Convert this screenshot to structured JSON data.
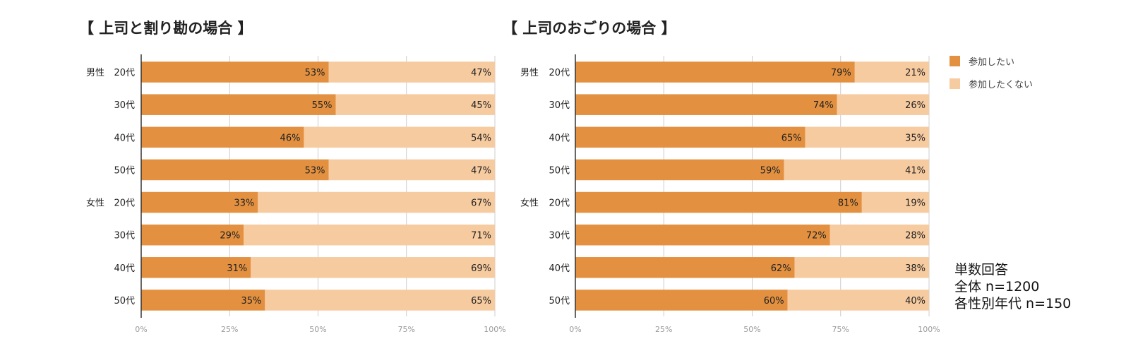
{
  "chart_data": [
    {
      "type": "bar",
      "stacked": true,
      "orientation": "horizontal",
      "title": "【 上司と割り勘の場合 】",
      "group_labels": [
        "男性",
        "",
        "",
        "",
        "女性",
        "",
        "",
        ""
      ],
      "categories": [
        "20代",
        "30代",
        "40代",
        "50代",
        "20代",
        "30代",
        "40代",
        "50代"
      ],
      "series": [
        {
          "name": "参加したい",
          "values": [
            53,
            55,
            46,
            53,
            33,
            29,
            31,
            35
          ],
          "labels": [
            "53%",
            "55%",
            "46%",
            "53%",
            "33%",
            "29%",
            "31%",
            "35%"
          ]
        },
        {
          "name": "参加したくない",
          "values": [
            47,
            45,
            54,
            47,
            67,
            71,
            69,
            65
          ],
          "labels": [
            "47%",
            "45%",
            "54%",
            "47%",
            "67%",
            "71%",
            "69%",
            "65%"
          ]
        }
      ],
      "xlim": [
        0,
        100
      ],
      "xticks": [
        "0%",
        "25%",
        "50%",
        "75%",
        "100%"
      ],
      "grid": true
    },
    {
      "type": "bar",
      "stacked": true,
      "orientation": "horizontal",
      "title": "【 上司のおごりの場合 】",
      "group_labels": [
        "男性",
        "",
        "",
        "",
        "女性",
        "",
        "",
        ""
      ],
      "categories": [
        "20代",
        "30代",
        "40代",
        "50代",
        "20代",
        "30代",
        "40代",
        "50代"
      ],
      "series": [
        {
          "name": "参加したい",
          "values": [
            79,
            74,
            65,
            59,
            81,
            72,
            62,
            60
          ],
          "labels": [
            "79%",
            "74%",
            "65%",
            "59%",
            "81%",
            "72%",
            "62%",
            "60%"
          ]
        },
        {
          "name": "参加したくない",
          "values": [
            21,
            26,
            35,
            41,
            19,
            28,
            38,
            40
          ],
          "labels": [
            "21%",
            "26%",
            "35%",
            "41%",
            "19%",
            "28%",
            "38%",
            "40%"
          ]
        }
      ],
      "xlim": [
        0,
        100
      ],
      "xticks": [
        "0%",
        "25%",
        "50%",
        "75%",
        "100%"
      ],
      "grid": true,
      "legend": "top-right"
    }
  ],
  "legend": {
    "items": [
      {
        "label": "参加したい",
        "color": "#e39140"
      },
      {
        "label": "参加したくない",
        "color": "#f7cba0"
      }
    ]
  },
  "note": {
    "line1": "単数回答",
    "line2": "全体 n=1200",
    "line3": "各性別年代 n=150"
  },
  "colors": {
    "series_1": "#e39140",
    "series_2": "#f7cba0",
    "axis": "#333333",
    "grid": "#cccccc",
    "tick_text": "#999999"
  }
}
